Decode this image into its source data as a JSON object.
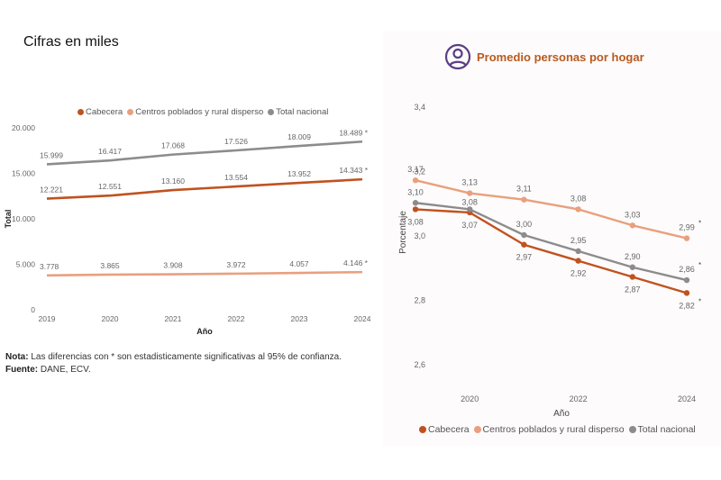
{
  "left_panel": {
    "subtitle": "Cifras en miles",
    "note_label": "Nota:",
    "note_text": " Las diferencias con * son estadisticamente significativas al 95% de confianza.",
    "source_label": "Fuente:",
    "source_text": " DANE, ECV."
  },
  "right_panel": {
    "title": "Promedio personas por hogar",
    "title_icon": "person-circle-icon"
  },
  "colors": {
    "cabecera": "#c0521f",
    "centros": "#e8a07e",
    "total": "#8c8c8c",
    "title_accent": "#b85a1f",
    "icon": "#5b3e84"
  },
  "chart_data": [
    {
      "type": "line",
      "title": "Cifras en miles",
      "xlabel": "Año",
      "ylabel": "Total",
      "x": [
        "2019",
        "2020",
        "2021",
        "2022",
        "2023",
        "2024"
      ],
      "ylim": [
        0,
        20000
      ],
      "yticks": [
        0,
        5000,
        10000,
        15000,
        20000
      ],
      "ytick_labels": [
        "0",
        "5.000",
        "10.000",
        "15.000",
        "20.000"
      ],
      "legend_position": "top",
      "grid": false,
      "series": [
        {
          "name": "Cabecera",
          "color_key": "cabecera",
          "values": [
            12221,
            12551,
            13160,
            13554,
            13952,
            14343
          ],
          "labels": [
            "12.221",
            "12.551",
            "13.160",
            "13.554",
            "13.952",
            "14.343 *"
          ]
        },
        {
          "name": "Centros poblados y rural disperso",
          "color_key": "centros",
          "values": [
            3778,
            3865,
            3908,
            3972,
            4057,
            4146
          ],
          "labels": [
            "3.778",
            "3.865",
            "3.908",
            "3.972",
            "4.057",
            "4.146 *"
          ]
        },
        {
          "name": "Total nacional",
          "color_key": "total",
          "values": [
            15999,
            16417,
            17068,
            17526,
            18009,
            18489
          ],
          "labels": [
            "15.999",
            "16.417",
            "17.068",
            "17.526",
            "18.009",
            "18.489 *"
          ]
        }
      ]
    },
    {
      "type": "line",
      "title": "Promedio personas por hogar",
      "xlabel": "Año",
      "ylabel": "Porcentaje",
      "x": [
        2019,
        2020,
        2021,
        2022,
        2023,
        2024
      ],
      "xticks": [
        2020,
        2022,
        2024
      ],
      "xtick_labels": [
        "2020",
        "2022",
        "2024"
      ],
      "ylim": [
        2.5,
        3.45
      ],
      "yticks": [
        2.6,
        2.8,
        3.0,
        3.2,
        3.4
      ],
      "ytick_labels": [
        "2,6",
        "2,8",
        "3,0",
        "3,2",
        "3,4"
      ],
      "legend_position": "bottom",
      "grid": false,
      "series": [
        {
          "name": "Cabecera",
          "color_key": "cabecera",
          "values": [
            3.08,
            3.07,
            2.97,
            2.92,
            2.87,
            2.82
          ],
          "labels": [
            "3,08",
            "3,07",
            "2,97",
            "2,92",
            "2,87",
            "2,82"
          ],
          "label_pos": [
            "below",
            "below",
            "below",
            "below",
            "below",
            "below"
          ],
          "significant_last": true
        },
        {
          "name": "Centros poblados y rural disperso",
          "color_key": "centros",
          "values": [
            3.17,
            3.13,
            3.11,
            3.08,
            3.03,
            2.99
          ],
          "labels": [
            "3,17",
            "3,13",
            "3,11",
            "3,08",
            "3,03",
            "2,99"
          ],
          "label_pos": [
            "above",
            "above",
            "above",
            "above",
            "above",
            "above"
          ],
          "significant_last": true
        },
        {
          "name": "Total nacional",
          "color_key": "total",
          "values": [
            3.1,
            3.08,
            3.0,
            2.95,
            2.9,
            2.86
          ],
          "labels": [
            "3,10",
            "3,08",
            "3,00",
            "2,95",
            "2,90",
            "2,86"
          ],
          "label_pos": [
            "above",
            "above",
            "above",
            "above",
            "above",
            "above"
          ],
          "significant_last": true
        }
      ]
    }
  ]
}
